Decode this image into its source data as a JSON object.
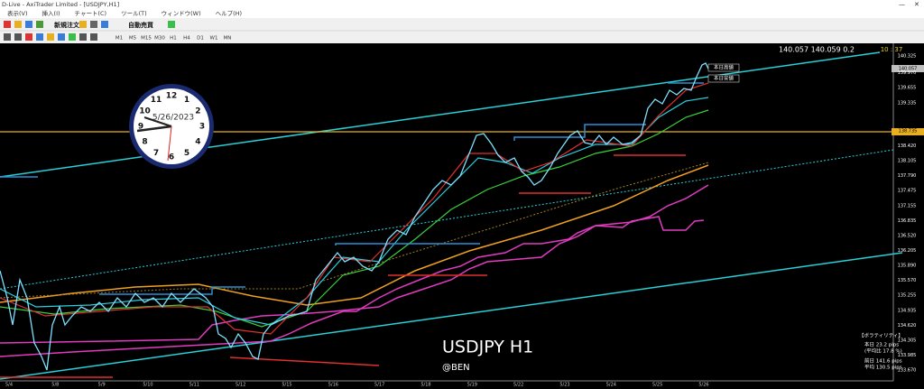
{
  "window": {
    "title": "D-Live - AxiTrader Limited - [USDJPY,H1]"
  },
  "menu": [
    "表示(V)",
    "挿入(I)",
    "チャート(C)",
    "ツール(T)",
    "ウィンドウ(W)",
    "ヘルプ(H)"
  ],
  "toolbar": {
    "new_order": "新規注文",
    "auto_trading": "自動売買",
    "timeframes": [
      "M1",
      "M5",
      "M15",
      "M30",
      "H1",
      "H4",
      "D1",
      "W1",
      "MN"
    ]
  },
  "chart": {
    "quote": "140.057  140.059  0.2",
    "time": "10 : 37",
    "symbol": "USDJPY H1",
    "author": "@BEN",
    "day_high": "本日高値",
    "day_low": "本日安値",
    "price_scale": [
      "140.325",
      "139.970",
      "139.655",
      "139.335",
      "138.420",
      "138.105",
      "137.790",
      "137.475",
      "137.155",
      "136.835",
      "136.520",
      "136.205",
      "135.890",
      "135.570",
      "135.255",
      "134.935",
      "134.620",
      "134.305",
      "133.985",
      "133.670"
    ],
    "current_price": "140.057",
    "level_price": "138.735",
    "dates": [
      "5/4",
      "5/8",
      "5/9",
      "5/10",
      "5/11",
      "5/12",
      "5/15",
      "5/16",
      "5/17",
      "5/18",
      "5/19",
      "5/22",
      "5/23",
      "5/24",
      "5/25",
      "5/26"
    ],
    "clock": {
      "date": "5/26/2023",
      "numerals": [
        "12",
        "1",
        "2",
        "3",
        "4",
        "5",
        "6",
        "7",
        "8",
        "9",
        "10",
        "11"
      ]
    },
    "volatility": {
      "heading": "【ボラティリティ】",
      "rows": [
        "本日  23.2 pips",
        "(平均比  17.8 %)",
        "前日  141.6 pips",
        "平均  130.5 pips"
      ]
    }
  }
}
